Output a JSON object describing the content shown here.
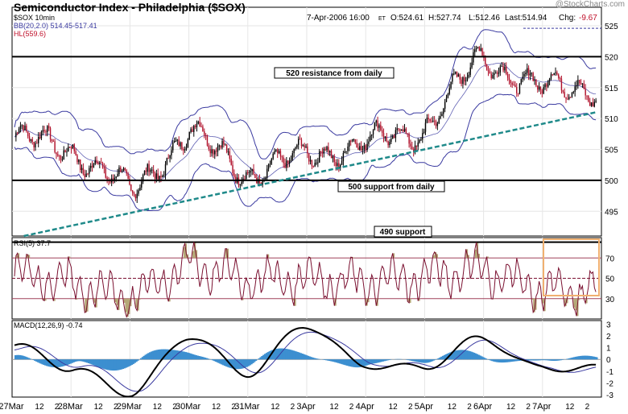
{
  "header": {
    "title": "Semiconductor Index - Philadelphia ($SOX)",
    "watermark": "@StockCharts.com",
    "symbol_line": "$SOX 10min",
    "bb_line": "BB(20,2.0) 514.45-517.41",
    "hl_line": "HL(559.6)",
    "quote": {
      "date": "7-Apr-2006 16:00",
      "tz": "ET",
      "open": "O:524.61",
      "high": "H:527.74",
      "low": "L:512.46",
      "last": "Last:514.94",
      "chg_label": "Chg:",
      "chg_value": "-9.67"
    }
  },
  "colors": {
    "price": "#000000",
    "bollinger": "#3a3aa0",
    "trendline": "#1f8a8a",
    "rsi_line": "#7a1030",
    "rsi_fill": "#b5a878",
    "macd_hist": "#3c8fd0",
    "up_candle": "#000000",
    "down_candle": "#b0102a",
    "highlight_box": "#f0b070"
  },
  "annotations": {
    "resistance_label": "520 resistance from daily",
    "support500_label": "500 support from daily",
    "support490_label": "490 support"
  },
  "rsi_panel": {
    "label": "RSI(5) 37.7",
    "ticks": [
      "70",
      "50",
      "30"
    ]
  },
  "macd_panel": {
    "label": "MACD(12,26,9) -0.74",
    "ticks": [
      "3",
      "2",
      "1",
      "0",
      "-1",
      "-2",
      "-3"
    ]
  },
  "x_axis_labels": [
    "27Mar",
    "12",
    "2",
    "28Mar",
    "12",
    "2",
    "29Mar",
    "12",
    "2",
    "30Mar",
    "12",
    "2",
    "31Mar",
    "12",
    "2",
    "3Apr",
    "12",
    "2",
    "4Apr",
    "12",
    "2",
    "5Apr",
    "12",
    "2",
    "6Apr",
    "12",
    "2",
    "7Apr",
    "12",
    "2"
  ],
  "chart_data": [
    {
      "type": "line",
      "panel": "price",
      "title": "Semiconductor Index - Philadelphia ($SOX)",
      "x": [
        "27Mar",
        "28Mar",
        "29Mar",
        "30Mar",
        "31Mar",
        "3Apr",
        "4Apr",
        "5Apr",
        "6Apr",
        "7Apr"
      ],
      "ylim": [
        491,
        528
      ],
      "yticks": [
        495,
        500,
        505,
        510,
        515,
        520,
        525
      ],
      "series": [
        {
          "name": "$SOX 10min",
          "values": [
            507,
            505,
            498,
            508,
            501,
            504,
            506,
            508,
            520,
            515
          ]
        }
      ],
      "horizontal_lines": [
        520,
        500,
        490
      ],
      "trendline": {
        "from": [
          0.2,
          491
        ],
        "to": [
          9.9,
          511
        ]
      },
      "grid": true
    },
    {
      "type": "line",
      "panel": "rsi",
      "title": "RSI(5) 37.7",
      "ylim": [
        10,
        90
      ],
      "yticks": [
        30,
        50,
        70
      ],
      "series": [
        {
          "name": "RSI(5)",
          "values": [
            55,
            45,
            30,
            65,
            48,
            50,
            45,
            52,
            60,
            37.7
          ]
        }
      ]
    },
    {
      "type": "line",
      "panel": "macd",
      "title": "MACD(12,26,9) -0.74",
      "ylim": [
        -3.2,
        3.3
      ],
      "yticks": [
        -3,
        -2,
        -1,
        0,
        1,
        2,
        3
      ],
      "series": [
        {
          "name": "MACD",
          "values": [
            1.2,
            -0.8,
            -2.9,
            2.0,
            -1.2,
            2.9,
            -0.5,
            -0.7,
            1.8,
            -0.74
          ]
        },
        {
          "name": "Signal",
          "values": [
            1.0,
            -0.5,
            -2.5,
            1.6,
            -0.9,
            2.5,
            -0.3,
            -0.6,
            1.5,
            -0.85
          ]
        }
      ]
    }
  ]
}
